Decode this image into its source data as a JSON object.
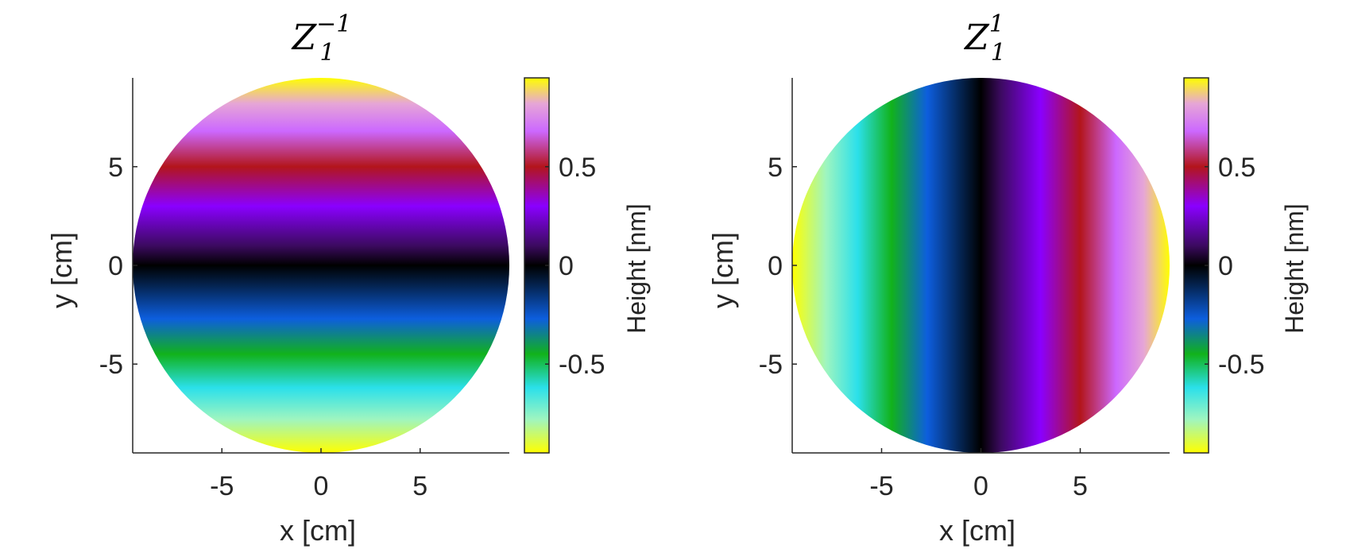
{
  "chart_data": [
    {
      "type": "heatmap",
      "title": "Z",
      "title_sub": "1",
      "title_sup": "−1",
      "xlabel": "x [cm]",
      "ylabel": "y [cm]",
      "colorbar_label": "Height [nm]",
      "x_range": [
        -9.5,
        9.5
      ],
      "y_range": [
        -9.5,
        9.5
      ],
      "x_ticks": [
        -5,
        0,
        5
      ],
      "y_ticks": [
        -5,
        0,
        5
      ],
      "x_tick_labels": [
        "-5",
        "0",
        "5"
      ],
      "y_tick_labels": [
        "-5",
        "0",
        "5"
      ],
      "colorbar_range": [
        -0.95,
        0.95
      ],
      "colorbar_ticks": [
        -0.5,
        0,
        0.5
      ],
      "colorbar_tick_labels": [
        "-0.5",
        "0",
        "0.5"
      ],
      "aperture_radius": 9.5,
      "surface": "height = y / 9.5 (tilt along y)",
      "gradient_direction": "y",
      "grid": false
    },
    {
      "type": "heatmap",
      "title": "Z",
      "title_sub": "1",
      "title_sup": "1",
      "xlabel": "x [cm]",
      "ylabel": "y [cm]",
      "colorbar_label": "Height [nm]",
      "x_range": [
        -9.5,
        9.5
      ],
      "y_range": [
        -9.5,
        9.5
      ],
      "x_ticks": [
        -5,
        0,
        5
      ],
      "y_ticks": [
        -5,
        0,
        5
      ],
      "x_tick_labels": [
        "-5",
        "0",
        "5"
      ],
      "y_tick_labels": [
        "-5",
        "0",
        "5"
      ],
      "colorbar_range": [
        -0.95,
        0.95
      ],
      "colorbar_ticks": [
        -0.5,
        0,
        0.5
      ],
      "colorbar_tick_labels": [
        "-0.5",
        "0",
        "0.5"
      ],
      "aperture_radius": 9.5,
      "surface": "height = x / 9.5 (tilt along x)",
      "gradient_direction": "x",
      "grid": false
    }
  ],
  "colormap": [
    {
      "v": -0.95,
      "color": "#ffff00"
    },
    {
      "v": -0.78,
      "color": "#9ff5c0"
    },
    {
      "v": -0.62,
      "color": "#2be0ea"
    },
    {
      "v": -0.45,
      "color": "#11b21b"
    },
    {
      "v": -0.27,
      "color": "#0d5ede"
    },
    {
      "v": -0.1,
      "color": "#04234f"
    },
    {
      "v": 0.0,
      "color": "#000000"
    },
    {
      "v": 0.1,
      "color": "#3c0a60"
    },
    {
      "v": 0.3,
      "color": "#8a00ff"
    },
    {
      "v": 0.5,
      "color": "#b3151b"
    },
    {
      "v": 0.68,
      "color": "#cc68ff"
    },
    {
      "v": 0.82,
      "color": "#e6a6d6"
    },
    {
      "v": 0.95,
      "color": "#ffff00"
    }
  ]
}
